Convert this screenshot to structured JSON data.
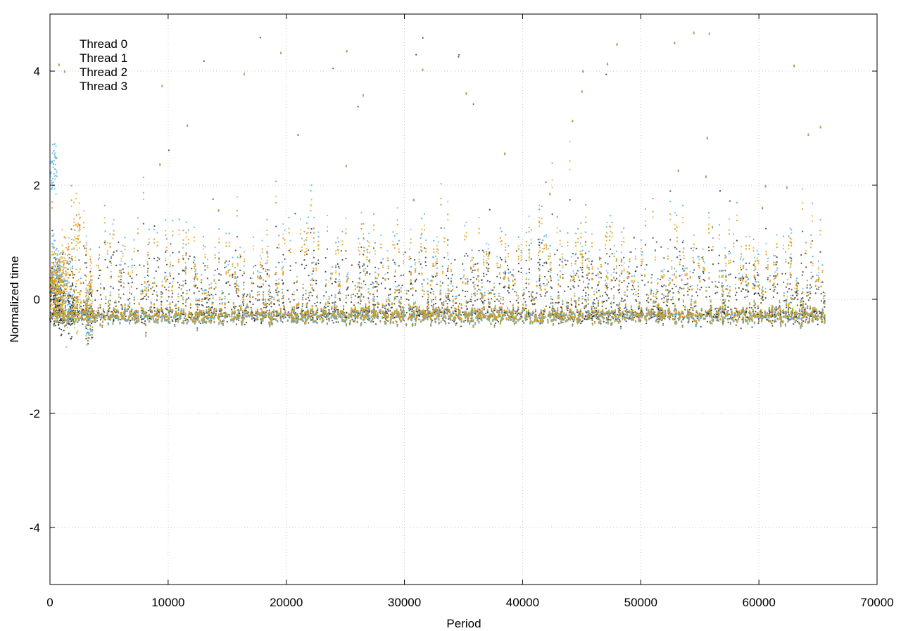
{
  "chart_data": {
    "type": "scatter",
    "title": "",
    "xlabel": "Period",
    "ylabel": "Normalized time",
    "xlim": [
      0,
      70000
    ],
    "ylim": [
      -5,
      5
    ],
    "x_ticks": [
      0,
      10000,
      20000,
      30000,
      40000,
      50000,
      60000,
      70000
    ],
    "y_ticks": [
      -4,
      -2,
      0,
      2,
      4
    ],
    "grid": true,
    "legend_position": "top-left",
    "series": [
      {
        "name": "Thread 0",
        "color": "#1a1a1a",
        "x_range": [
          0,
          65600
        ],
        "baseline": -0.3,
        "spread": 0.1,
        "upper_extent": 1.2,
        "startup_values": [
          [
            0,
            0.1
          ],
          [
            300,
            -0.05
          ],
          [
            700,
            -0.15
          ],
          [
            1500,
            -0.2
          ],
          [
            3000,
            -0.25
          ]
        ]
      },
      {
        "name": "Thread 1",
        "color": "#e6a020",
        "x_range": [
          0,
          65600
        ],
        "baseline": -0.3,
        "spread": 0.12,
        "upper_extent": 1.6,
        "startup_values": [
          [
            0,
            0.2
          ],
          [
            400,
            0.3
          ],
          [
            1000,
            0.6
          ],
          [
            2000,
            1.2
          ],
          [
            3000,
            0.1
          ]
        ]
      },
      {
        "name": "Thread 2",
        "color": "#5ab4e5",
        "x_range": [
          0,
          65600
        ],
        "baseline": -0.3,
        "spread": 0.12,
        "upper_extent": 1.8,
        "startup_values": [
          [
            0,
            2.3
          ],
          [
            200,
            0.5
          ],
          [
            600,
            0.2
          ],
          [
            1200,
            -0.1
          ],
          [
            3000,
            -0.25
          ]
        ]
      },
      {
        "name": "Thread 3",
        "color": "#d9a018",
        "x_range": [
          0,
          65600
        ],
        "baseline": -0.28,
        "spread": 0.12,
        "upper_extent": 1.5,
        "startup_values": [
          [
            0,
            0.2
          ],
          [
            500,
            0.1
          ],
          [
            1000,
            0.0
          ],
          [
            2000,
            -0.1
          ],
          [
            3000,
            -0.2
          ]
        ]
      }
    ]
  }
}
